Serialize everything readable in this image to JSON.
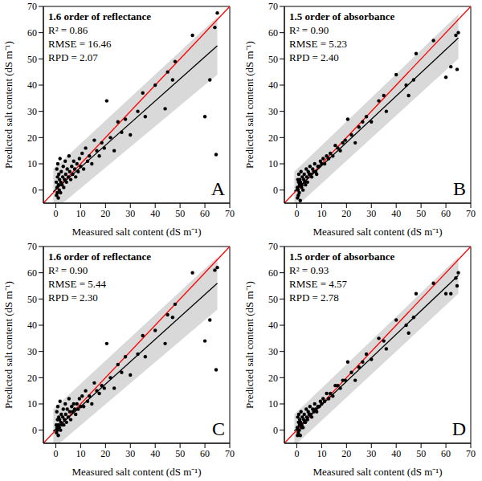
{
  "chart_data": [
    {
      "type": "scatter",
      "title": "1.6 order of reflectance",
      "annotations": [
        "R² = 0.86",
        "RMSE = 16.46",
        "RPD = 2.07"
      ],
      "panel_label": "A",
      "x_label": "Measured salt content (dS m⁻¹)",
      "y_label": "Predicted salt content (dS m⁻¹)",
      "xlim": [
        -5,
        70
      ],
      "ylim": [
        -5,
        70
      ],
      "xticks": [
        0,
        10,
        20,
        30,
        40,
        50,
        60,
        70
      ],
      "yticks": [
        0,
        10,
        20,
        30,
        40,
        50,
        60,
        70
      ],
      "series": [
        {
          "type": "area",
          "color": "#d9d9d9",
          "x": [
            -1,
            65
          ],
          "lower": [
            -8,
            44
          ],
          "upper": [
            8,
            66
          ]
        },
        {
          "type": "line",
          "color": "#ff0000",
          "x": [
            -5,
            70
          ],
          "values": [
            -5,
            70
          ]
        },
        {
          "type": "line",
          "color": "#000000",
          "x": [
            -1,
            65
          ],
          "values": [
            -0.6,
            55
          ]
        },
        {
          "type": "scatter",
          "color": "#000000",
          "marker": "circle",
          "x": [
            0.2,
            0.3,
            0.4,
            0.5,
            0.6,
            0.7,
            0.8,
            1.0,
            1.1,
            1.2,
            1.4,
            1.5,
            1.7,
            1.9,
            2.0,
            2.2,
            2.5,
            2.8,
            3.0,
            3.2,
            3.5,
            3.8,
            4.0,
            4.3,
            4.6,
            5.0,
            5.3,
            5.6,
            6.0,
            6.4,
            6.8,
            7.2,
            7.6,
            8.0,
            8.5,
            9.0,
            9.5,
            10.0,
            10.6,
            11.2,
            12.0,
            12.8,
            13.5,
            14.5,
            15.5,
            16.5,
            17.5,
            18.5,
            19.5,
            20.5,
            22.0,
            23.5,
            25.0,
            26.5,
            28.0,
            30.0,
            33.0,
            35.0,
            36.0,
            40.0,
            44.0,
            45.0,
            47.0,
            48.0,
            55.0,
            60.0,
            62.0,
            64.0,
            64.5,
            65.0
          ],
          "values": [
            3,
            -2,
            8,
            1,
            -1,
            5,
            10,
            -3,
            2,
            6,
            0,
            4,
            12,
            -1,
            3,
            7,
            2,
            5,
            9,
            1,
            4,
            11,
            6,
            3,
            8,
            5,
            13,
            7,
            4,
            9,
            6,
            11,
            8,
            5,
            10,
            7,
            12,
            9,
            14,
            8,
            16,
            11,
            13,
            10,
            19,
            15,
            13,
            18,
            16,
            34,
            20,
            15,
            26,
            22,
            27,
            21,
            30,
            37,
            28,
            40,
            31,
            45,
            42,
            49,
            59,
            28,
            42,
            62,
            13.5,
            67.5
          ]
        }
      ]
    },
    {
      "type": "scatter",
      "title": "1.5 order of absorbance",
      "annotations": [
        "R² = 0.90",
        "RMSE = 5.23",
        "RPD = 2.40"
      ],
      "panel_label": "B",
      "x_label": "Measured salt content (dS m⁻¹)",
      "y_label": "Predicted salt content (dS m⁻¹)",
      "xlim": [
        -5,
        70
      ],
      "ylim": [
        -5,
        70
      ],
      "xticks": [
        0,
        10,
        20,
        30,
        40,
        50,
        60,
        70
      ],
      "yticks": [
        0,
        10,
        20,
        30,
        40,
        50,
        60,
        70
      ],
      "series": [
        {
          "type": "area",
          "color": "#d9d9d9",
          "x": [
            -1,
            65
          ],
          "lower": [
            -7,
            50
          ],
          "upper": [
            7,
            67
          ]
        },
        {
          "type": "line",
          "color": "#ff0000",
          "x": [
            -5,
            70
          ],
          "values": [
            -5,
            70
          ]
        },
        {
          "type": "line",
          "color": "#000000",
          "x": [
            -1,
            65
          ],
          "values": [
            -0.5,
            58
          ]
        },
        {
          "type": "scatter",
          "color": "#000000",
          "marker": "circle",
          "x": [
            0.2,
            0.3,
            0.4,
            0.5,
            0.6,
            0.7,
            0.8,
            1.0,
            1.1,
            1.2,
            1.4,
            1.5,
            1.7,
            1.9,
            2.0,
            2.2,
            2.5,
            2.8,
            3.0,
            3.2,
            3.5,
            3.8,
            4.0,
            4.3,
            4.6,
            5.0,
            5.3,
            5.6,
            6.0,
            6.4,
            6.8,
            7.2,
            7.6,
            8.0,
            8.5,
            9.0,
            9.5,
            10.0,
            10.6,
            11.2,
            12.0,
            12.8,
            13.5,
            14.5,
            15.5,
            16.5,
            17.5,
            18.5,
            19.5,
            20.5,
            22.0,
            23.5,
            25.0,
            26.5,
            28.0,
            30.0,
            33.0,
            35.0,
            36.0,
            40.0,
            44.0,
            45.0,
            47.0,
            48.0,
            55.0,
            60.0,
            62.0,
            64.0,
            64.5,
            65.0
          ],
          "values": [
            1,
            -3,
            4,
            0,
            -2,
            3,
            6,
            -1,
            2,
            4,
            -4,
            3,
            7,
            1,
            2,
            5,
            0,
            4,
            6,
            3,
            2,
            8,
            5,
            3,
            7,
            6,
            9,
            6,
            5,
            8,
            7,
            10,
            7,
            6,
            9,
            9,
            11,
            10,
            12,
            10,
            13,
            12,
            14,
            13,
            17,
            16,
            15,
            18,
            19,
            27,
            21,
            18,
            24,
            26,
            28,
            26,
            34,
            36,
            30,
            44,
            40,
            36,
            42,
            52,
            57,
            43,
            47,
            59,
            46,
            60
          ]
        }
      ]
    },
    {
      "type": "scatter",
      "title": "1.6 order of reflectance",
      "annotations": [
        "R² = 0.90",
        "RMSE = 5.44",
        "RPD = 2.30"
      ],
      "panel_label": "C",
      "x_label": "Measured salt content (dS m⁻¹)",
      "y_label": "Predicted salt content (dS m⁻¹)",
      "xlim": [
        -5,
        70
      ],
      "ylim": [
        -5,
        70
      ],
      "xticks": [
        0,
        10,
        20,
        30,
        40,
        50,
        60,
        70
      ],
      "yticks": [
        0,
        10,
        20,
        30,
        40,
        50,
        60,
        70
      ],
      "series": [
        {
          "type": "area",
          "color": "#d9d9d9",
          "x": [
            -1,
            65
          ],
          "lower": [
            -7,
            46
          ],
          "upper": [
            8,
            66
          ]
        },
        {
          "type": "line",
          "color": "#ff0000",
          "x": [
            -5,
            70
          ],
          "values": [
            -5,
            70
          ]
        },
        {
          "type": "line",
          "color": "#000000",
          "x": [
            -1,
            65
          ],
          "values": [
            -0.4,
            56
          ]
        },
        {
          "type": "scatter",
          "color": "#000000",
          "marker": "circle",
          "x": [
            0.2,
            0.3,
            0.4,
            0.5,
            0.6,
            0.7,
            0.8,
            1.0,
            1.1,
            1.2,
            1.4,
            1.5,
            1.7,
            1.9,
            2.0,
            2.2,
            2.5,
            2.8,
            3.0,
            3.2,
            3.5,
            3.8,
            4.0,
            4.3,
            4.6,
            5.0,
            5.3,
            5.6,
            6.0,
            6.4,
            6.8,
            7.2,
            7.6,
            8.0,
            8.5,
            9.0,
            9.5,
            10.0,
            10.6,
            11.2,
            12.0,
            12.8,
            13.5,
            14.5,
            15.5,
            16.5,
            17.5,
            18.5,
            19.5,
            20.5,
            22.0,
            23.5,
            25.0,
            26.5,
            28.0,
            30.0,
            33.0,
            35.0,
            36.0,
            40.0,
            44.0,
            45.0,
            47.0,
            48.0,
            55.0,
            60.0,
            62.0,
            64.0,
            64.5,
            65.0
          ],
          "values": [
            2,
            -1,
            7,
            1,
            0,
            4,
            9,
            -2,
            2,
            5,
            1,
            4,
            11,
            0,
            3,
            6,
            2,
            5,
            8,
            2,
            4,
            10,
            6,
            3,
            8,
            5,
            12,
            7,
            4,
            9,
            7,
            10,
            8,
            6,
            10,
            8,
            12,
            9,
            13,
            9,
            15,
            11,
            13,
            10,
            18,
            15,
            14,
            17,
            16,
            33,
            20,
            16,
            25,
            22,
            28,
            21,
            29,
            36,
            28,
            38,
            33,
            44,
            43,
            48,
            60,
            34,
            42,
            61,
            23,
            62
          ]
        }
      ]
    },
    {
      "type": "scatter",
      "title": "1.5 order of absorbance",
      "annotations": [
        "R² = 0.93",
        "RMSE = 4.57",
        "RPD = 2.78"
      ],
      "panel_label": "D",
      "x_label": "Measured salt content (dS m⁻¹)",
      "y_label": "Predicted salt content (dS m⁻¹)",
      "xlim": [
        -5,
        70
      ],
      "ylim": [
        -5,
        70
      ],
      "xticks": [
        0,
        10,
        20,
        30,
        40,
        50,
        60,
        70
      ],
      "yticks": [
        0,
        10,
        20,
        30,
        40,
        50,
        60,
        70
      ],
      "series": [
        {
          "type": "area",
          "color": "#d9d9d9",
          "x": [
            -1,
            65
          ],
          "lower": [
            -6,
            52
          ],
          "upper": [
            6,
            66
          ]
        },
        {
          "type": "line",
          "color": "#ff0000",
          "x": [
            -5,
            70
          ],
          "values": [
            -5,
            70
          ]
        },
        {
          "type": "line",
          "color": "#000000",
          "x": [
            -1,
            65
          ],
          "values": [
            -0.3,
            59
          ]
        },
        {
          "type": "scatter",
          "color": "#000000",
          "marker": "circle",
          "x": [
            0.2,
            0.3,
            0.4,
            0.5,
            0.6,
            0.7,
            0.8,
            1.0,
            1.1,
            1.2,
            1.4,
            1.5,
            1.7,
            1.9,
            2.0,
            2.2,
            2.5,
            2.8,
            3.0,
            3.2,
            3.5,
            3.8,
            4.0,
            4.3,
            4.6,
            5.0,
            5.3,
            5.6,
            6.0,
            6.4,
            6.8,
            7.2,
            7.6,
            8.0,
            8.5,
            9.0,
            9.5,
            10.0,
            10.6,
            11.2,
            12.0,
            12.8,
            13.5,
            14.5,
            15.5,
            16.5,
            17.5,
            18.5,
            19.5,
            20.5,
            22.0,
            23.5,
            25.0,
            26.5,
            28.0,
            30.0,
            33.0,
            35.0,
            36.0,
            40.0,
            44.0,
            45.0,
            47.0,
            48.0,
            55.0,
            60.0,
            62.0,
            64.0,
            64.5,
            65.0
          ],
          "values": [
            1,
            -2,
            5,
            0,
            -1,
            3,
            6,
            0,
            2,
            4,
            -2,
            3,
            7,
            1,
            2,
            5,
            1,
            4,
            6,
            3,
            3,
            8,
            5,
            4,
            7,
            6,
            9,
            6,
            5,
            8,
            7,
            10,
            8,
            7,
            9,
            9,
            11,
            10,
            12,
            11,
            14,
            12,
            14,
            13,
            17,
            17,
            16,
            19,
            19,
            26,
            22,
            19,
            24,
            26,
            29,
            27,
            35,
            34,
            31,
            42,
            40,
            37,
            43,
            52,
            56,
            52,
            52,
            58,
            55,
            60
          ]
        }
      ]
    }
  ]
}
